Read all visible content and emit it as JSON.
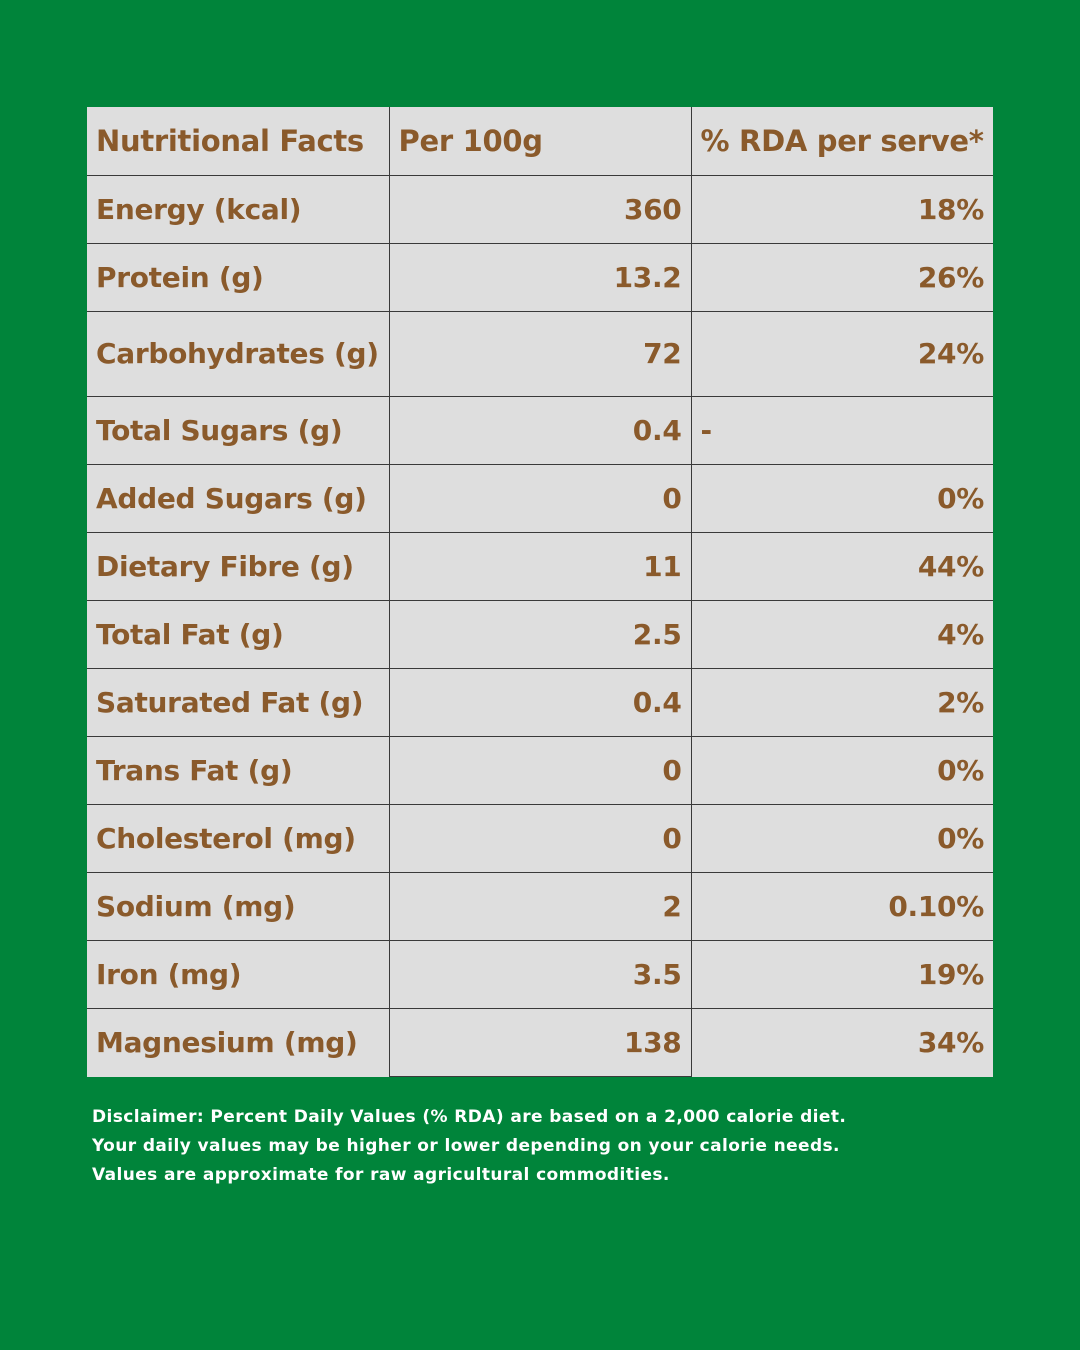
{
  "header": {
    "col1": "Nutritional Facts",
    "col2": "Per 100g",
    "col3": "% RDA per serve*"
  },
  "rows": [
    {
      "name": "Energy (kcal)",
      "per100g": "360",
      "rda": "18%"
    },
    {
      "name": "Protein (g)",
      "per100g": "13.2",
      "rda": "26%"
    },
    {
      "name": "Carbohydrates (g)",
      "per100g": "72",
      "rda": "24%"
    },
    {
      "name": "Total Sugars (g)",
      "per100g": "0.4",
      "rda": "-"
    },
    {
      "name": "Added Sugars (g)",
      "per100g": "0",
      "rda": "0%"
    },
    {
      "name": "Dietary Fibre (g)",
      "per100g": "11",
      "rda": "44%"
    },
    {
      "name": "Total Fat (g)",
      "per100g": "2.5",
      "rda": "4%"
    },
    {
      "name": "Saturated Fat (g)",
      "per100g": "0.4",
      "rda": "2%"
    },
    {
      "name": "Trans Fat (g)",
      "per100g": "0",
      "rda": "0%"
    },
    {
      "name": "Cholesterol (mg)",
      "per100g": "0",
      "rda": "0%"
    },
    {
      "name": "Sodium (mg)",
      "per100g": "2",
      "rda": "0.10%"
    },
    {
      "name": "Iron (mg)",
      "per100g": "3.5",
      "rda": "19%"
    },
    {
      "name": "Magnesium (mg)",
      "per100g": "138",
      "rda": "34%"
    }
  ],
  "disclaimer": {
    "line1": "Disclaimer: Percent Daily Values (% RDA) are based on a 2,000 calorie diet.",
    "line2": "Your daily values may be higher or lower depending on your calorie needs.",
    "line3": "Values are approximate for raw agricultural commodities."
  },
  "colors": {
    "background": "#00843a",
    "table_background": "#dedede",
    "text": "#8a5a2b",
    "disclaimer_text": "#ffffff"
  }
}
